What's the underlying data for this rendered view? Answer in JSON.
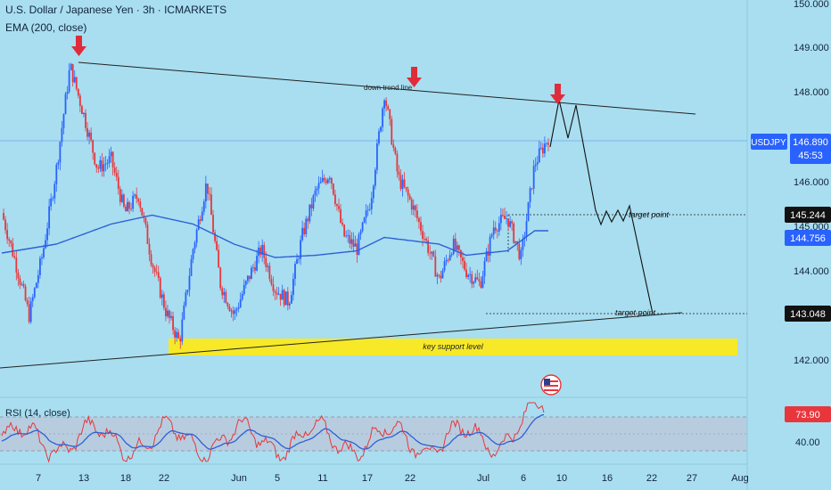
{
  "header": {
    "title": "U.S. Dollar / Japanese Yen · 3h · ICMARKETS",
    "indicator": "EMA (200, close)"
  },
  "rsi_panel": {
    "label": "RSI (14, close)",
    "value_badge": "73.90",
    "axis_top_label": "",
    "axis_level_label": "40.00"
  },
  "annotations": {
    "down_trend_line": "down trend line",
    "key_support": "key support level",
    "target_point_upper": "target point",
    "target_point_lower": "target point"
  },
  "price_axis": {
    "ticks": [
      "150.000",
      "149.000",
      "148.000",
      "146.000",
      "145.000",
      "144.000",
      "142.000"
    ],
    "symbol_badge": "USDJPY",
    "current_price": "146.890",
    "countdown": "45:53",
    "level_upper": "145.244",
    "ema_value": "144.756",
    "level_lower": "143.048"
  },
  "time_axis": {
    "labels": [
      "7",
      "13",
      "18",
      "22",
      "Jun",
      "5",
      "11",
      "17",
      "22",
      "Jul",
      "6",
      "10",
      "16",
      "22",
      "27",
      "Aug"
    ]
  },
  "colors": {
    "background": "#a8def0",
    "candle_up": "#2962ff",
    "candle_down": "#e8363c",
    "ema": "#2f5fd6",
    "support_zone": "#f7e928",
    "badge_blue": "#2962ff",
    "badge_black": "#111111",
    "badge_red": "#e8363c",
    "rsi_line": "#e8363c",
    "rsi_ma": "#2f5fd6",
    "arrow": "#e02c3a"
  },
  "chart_data": {
    "type": "candlestick",
    "symbol": "USDJPY",
    "timeframe": "3h",
    "ylim": [
      141.5,
      150.0
    ],
    "grid": false,
    "close_path": [
      [
        0,
        145.3
      ],
      [
        1,
        144.2
      ],
      [
        2,
        143.0
      ],
      [
        3,
        144.4
      ],
      [
        4,
        146.3
      ],
      [
        5,
        148.6
      ],
      [
        6,
        147.5
      ],
      [
        7,
        146.3
      ],
      [
        8,
        146.5
      ],
      [
        9,
        145.3
      ],
      [
        10,
        145.7
      ],
      [
        11,
        144.2
      ],
      [
        12,
        143.1
      ],
      [
        13,
        142.4
      ],
      [
        14,
        144.5
      ],
      [
        15,
        146.0
      ],
      [
        16,
        143.7
      ],
      [
        17,
        143.0
      ],
      [
        18,
        143.8
      ],
      [
        19,
        144.5
      ],
      [
        20,
        143.6
      ],
      [
        21,
        143.3
      ],
      [
        22,
        144.8
      ],
      [
        23,
        145.8
      ],
      [
        24,
        146.2
      ],
      [
        25,
        144.8
      ],
      [
        26,
        144.5
      ],
      [
        27,
        145.6
      ],
      [
        28,
        148.0
      ],
      [
        29,
        146.1
      ],
      [
        30,
        145.5
      ],
      [
        31,
        144.7
      ],
      [
        32,
        143.8
      ],
      [
        33,
        144.6
      ],
      [
        34,
        144.0
      ],
      [
        35,
        143.7
      ],
      [
        36,
        145.0
      ],
      [
        37,
        145.2
      ],
      [
        38,
        144.3
      ],
      [
        39,
        146.4
      ],
      [
        40,
        147.0
      ]
    ],
    "ema200": [
      [
        0,
        144.4
      ],
      [
        4,
        144.6
      ],
      [
        8,
        145.05
      ],
      [
        11,
        145.25
      ],
      [
        14,
        145.05
      ],
      [
        17,
        144.6
      ],
      [
        20,
        144.3
      ],
      [
        23,
        144.35
      ],
      [
        26,
        144.45
      ],
      [
        28,
        144.75
      ],
      [
        32,
        144.6
      ],
      [
        34,
        144.35
      ],
      [
        37,
        144.45
      ],
      [
        39,
        144.9
      ]
    ],
    "down_trend_line": [
      [
        5,
        148.7
      ],
      [
        44,
        147.5
      ]
    ],
    "support_trend_line": [
      [
        0,
        142.1
      ],
      [
        44,
        143.05
      ]
    ],
    "support_zone": [
      142.05,
      142.25
    ],
    "target_levels": [
      145.244,
      143.048
    ],
    "projection_path": [
      [
        40,
        146.7
      ],
      [
        41,
        147.9
      ],
      [
        42,
        147.3
      ],
      [
        43,
        147.8
      ],
      [
        45,
        145.1
      ],
      [
        46,
        145.2
      ],
      [
        47,
        145.0
      ],
      [
        48,
        145.3
      ],
      [
        49,
        145.1
      ],
      [
        50,
        145.3
      ],
      [
        52,
        143.05
      ]
    ],
    "rsi": {
      "last": 73.9,
      "level": 40.0
    }
  }
}
